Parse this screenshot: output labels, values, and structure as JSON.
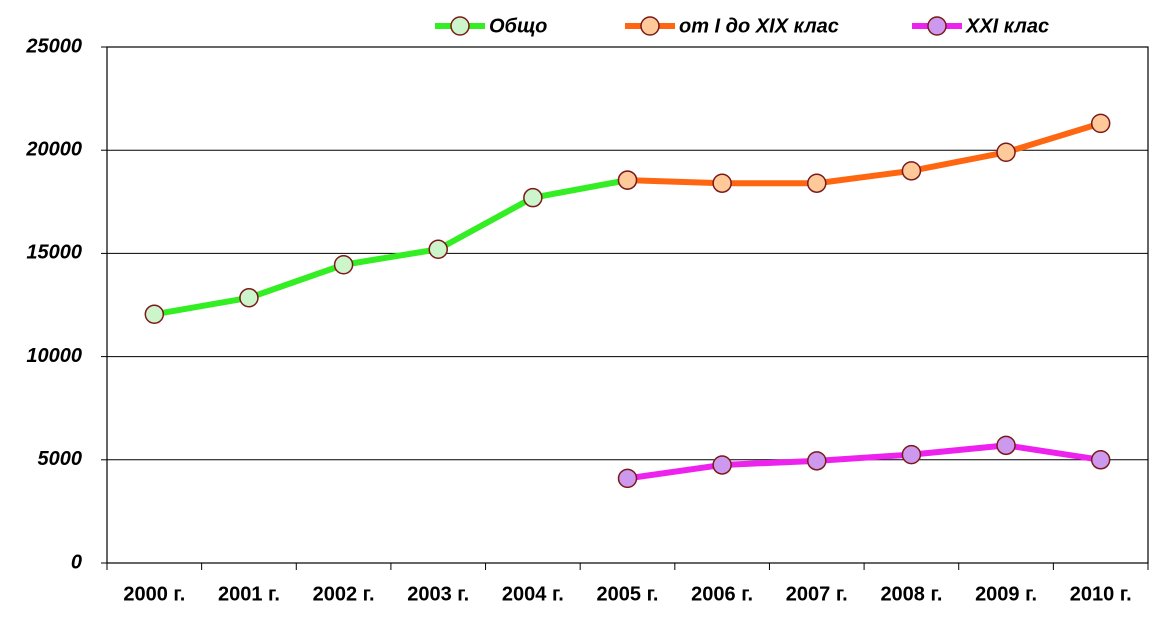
{
  "chart_data": {
    "type": "line",
    "categories": [
      "2000 г.",
      "2001 г.",
      "2002 г.",
      "2003 г.",
      "2004 г.",
      "2005 г.",
      "2006 г.",
      "2007 г.",
      "2008 г.",
      "2009 г.",
      "2010 г."
    ],
    "series": [
      {
        "name": "Общо",
        "color": "#33ee22",
        "marker_color": "#ccf5cc",
        "values": [
          12050,
          12850,
          14450,
          15200,
          17700,
          18550,
          null,
          null,
          null,
          null,
          null
        ]
      },
      {
        "name": "от I до XIX клас",
        "color": "#ff6611",
        "marker_color": "#ffc999",
        "values": [
          null,
          null,
          null,
          null,
          null,
          18550,
          18400,
          18400,
          19000,
          19900,
          21300
        ]
      },
      {
        "name": "XXI клас",
        "color": "#ee22ee",
        "marker_color": "#cc99ee",
        "values": [
          null,
          null,
          null,
          null,
          null,
          4100,
          4750,
          4950,
          5250,
          5700,
          5000
        ]
      }
    ],
    "ylim": [
      0,
      25000
    ],
    "yticks": [
      0,
      5000,
      10000,
      15000,
      20000,
      25000
    ],
    "grid": true,
    "legend": "top"
  }
}
